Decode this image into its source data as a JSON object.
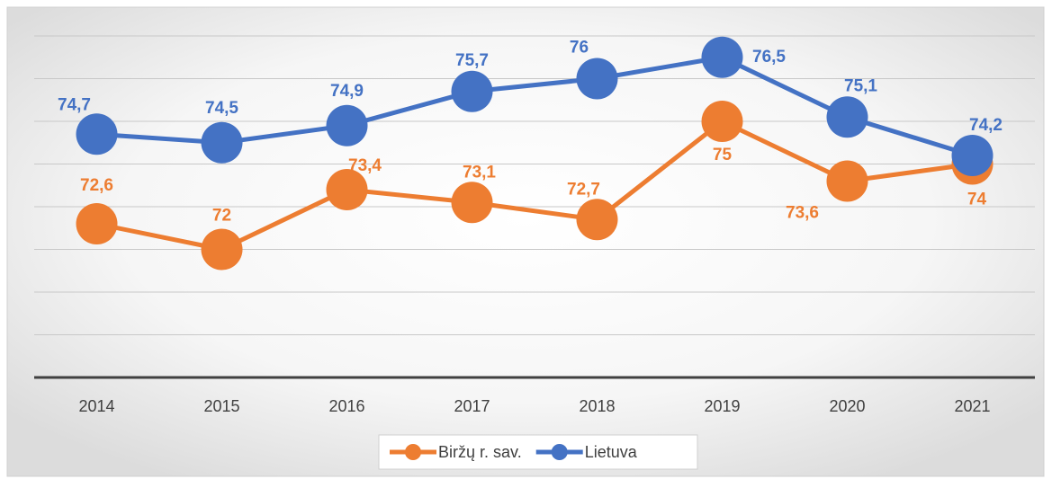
{
  "chart_data": {
    "type": "line",
    "categories": [
      "2014",
      "2015",
      "2016",
      "2017",
      "2018",
      "2019",
      "2020",
      "2021"
    ],
    "series": [
      {
        "name": "Biržų r. sav.",
        "color": "#ED7D31",
        "values": [
          72.6,
          72,
          73.4,
          73.1,
          72.7,
          75,
          73.6,
          74
        ],
        "value_labels": [
          "72,6",
          "72",
          "73,4",
          "73,1",
          "72,7",
          "75",
          "73,6",
          "74"
        ]
      },
      {
        "name": "Lietuva",
        "color": "#4472C4",
        "values": [
          74.7,
          74.5,
          74.9,
          75.7,
          76,
          76.5,
          75.1,
          74.2
        ],
        "value_labels": [
          "74,7",
          "74,5",
          "74,9",
          "75,7",
          "76",
          "76,5",
          "75,1",
          "74,2"
        ]
      }
    ],
    "ylim": [
      69,
      77
    ],
    "yticks": [
      69,
      70,
      71,
      72,
      73,
      74,
      75,
      76,
      77
    ],
    "grid": true
  }
}
